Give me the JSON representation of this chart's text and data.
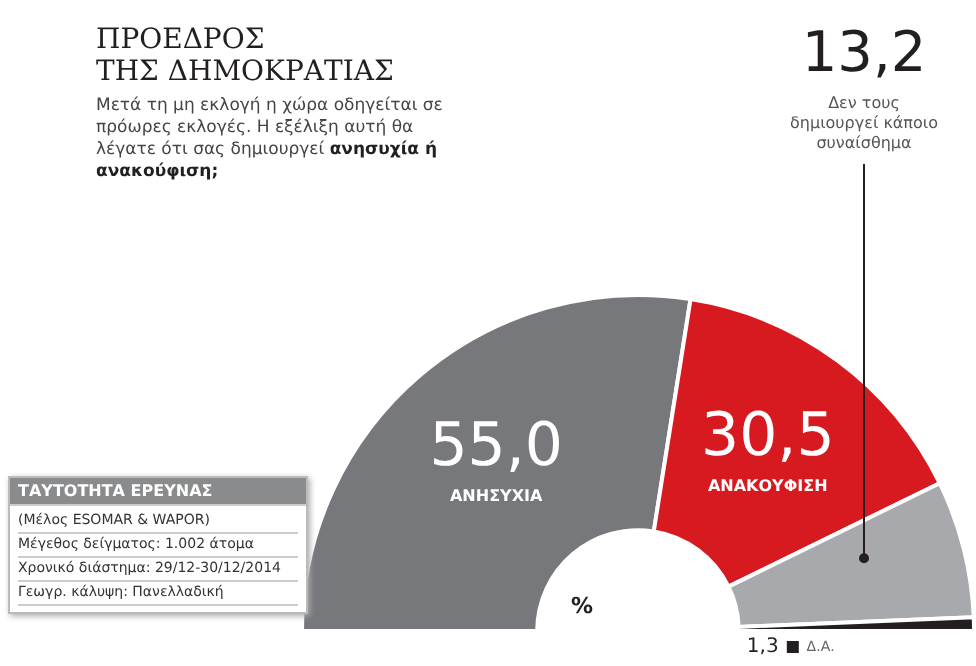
{
  "chart_data": {
    "type": "donut",
    "title": "ΠΡΟΕΔΡΟΣ\nΤΗΣ ΔΗΜΟΚΡΑΤΙΑΣ",
    "subtitle": "Μετά τη μη εκλογή η χώρα οδηγείται σε πρόωρες εκλογές. Η εξέλιξη αυτή θα λέγατε ότι σας δημιουργεί **ανησυχία ή ανακούφιση;**",
    "categories": [
      "ΑΝΗΣΥΧΙΑ",
      "ΑΝΑΚΟΥΦΙΣΗ",
      "Δεν τους δημιουργεί κάποιο συναίσθημα",
      "Δ.Α."
    ],
    "values": [
      55.0,
      30.5,
      13.2,
      1.3
    ],
    "colors": [
      "#77787b",
      "#d71920",
      "#a7a9ac",
      "#231f20"
    ],
    "value_labels": [
      "55,0",
      "30,5",
      "13,2",
      "1,3"
    ],
    "annotations": [
      "%",
      "ΤΑΥΤΟΤΗΤΑ ΕΡΕΥΝΑΣ",
      "(Μέλος ESOMAR & WAPOR)",
      "Μέγεθος δείγματος: 1.002 άτομα",
      "Χρονικό διάστημα: 29/12-30/12/2014",
      "Γεωγρ. κάλυψη: Πανελλαδική"
    ]
  }
}
